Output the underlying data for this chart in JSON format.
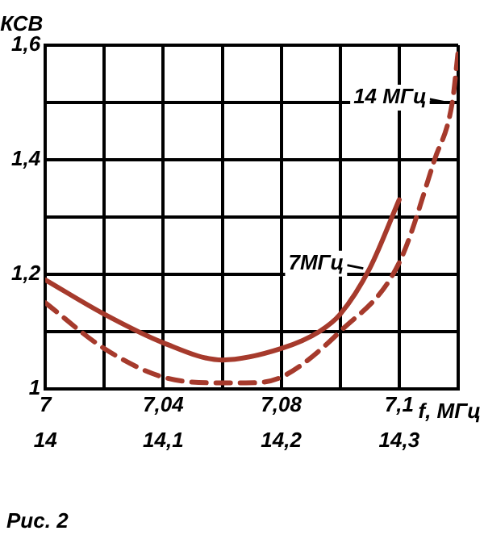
{
  "chart_data": {
    "type": "line",
    "ylabel": "КСВ",
    "xlabel": "f, МГц",
    "annotations": [
      "Рис. 2"
    ],
    "xlim": [
      7,
      7.14
    ],
    "xticks": [
      7,
      {
        "value": 7.02,
        "label": null
      },
      {
        "value": 7.04,
        "label": "7,04"
      },
      {
        "value": 7.06,
        "label": null
      },
      {
        "value": 7.08,
        "label": "7,08"
      },
      {
        "value": 7.1,
        "label": null
      },
      {
        "value": 7.12,
        "label": "7,1"
      },
      {
        "value": 7.14,
        "label": null
      }
    ],
    "x2lim": [
      14,
      14.35
    ],
    "x2ticks": [
      14,
      {
        "value": 14.1,
        "label": "14,1"
      },
      {
        "value": 14.2,
        "label": "14,2"
      },
      {
        "value": 14.3,
        "label": "14,3"
      }
    ],
    "ylim": [
      1,
      1.6
    ],
    "yticks": [
      1,
      {
        "value": 1.1,
        "label": null
      },
      {
        "value": 1.2,
        "label": "1,2"
      },
      {
        "value": 1.3,
        "label": null
      },
      {
        "value": 1.4,
        "label": "1,4"
      },
      {
        "value": 1.5,
        "label": null
      },
      {
        "value": 1.6,
        "label": "1,6"
      }
    ],
    "grid": true,
    "legend": false,
    "series": [
      {
        "name": "7МГц",
        "color": "#a63a2c",
        "line_style": "solid",
        "x": [
          7,
          7.02,
          7.04,
          7.06,
          7.08,
          7.093,
          7.1,
          7.11,
          7.12
        ],
        "values": [
          1.19,
          1.13,
          1.08,
          1.05,
          1.07,
          1.1,
          1.13,
          1.21,
          1.33
        ]
      },
      {
        "name": "14 МГц",
        "color": "#a63a2c",
        "line_style": "dashed",
        "axis": "x2",
        "x": [
          14,
          14.05,
          14.1,
          14.15,
          14.17,
          14.2,
          14.25,
          14.3,
          14.33,
          14.345,
          14.35
        ],
        "values": [
          1.15,
          1.07,
          1.02,
          1.01,
          1.01,
          1.02,
          1.1,
          1.22,
          1.4,
          1.5,
          1.59
        ]
      }
    ]
  }
}
